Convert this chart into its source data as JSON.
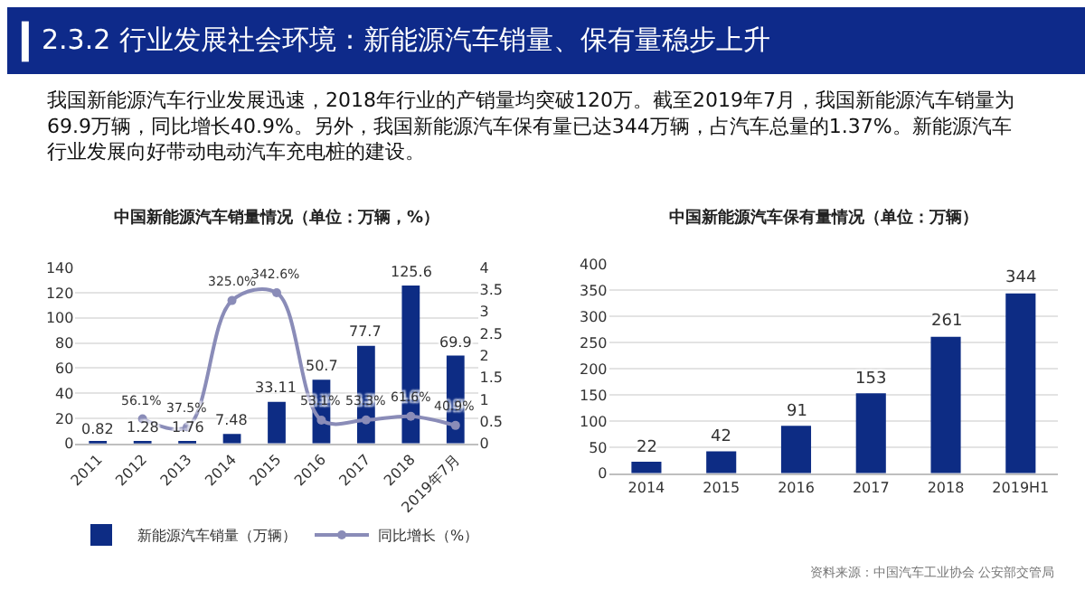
{
  "chart_data": [
    {
      "type": "other",
      "title": "2.3.2 行业发展社会环境：新能源汽车销量、保有量稳步上升",
      "annotations": [
        "我国新能源汽车行业发展迅速，2018年行业的产销量均突破120万。截至2019年7月，我国新能源汽车销量为69.9万辆，同比增长40.9%。另外，我国新能源汽车保有量已达344万辆，占汽车总量的1.37%。新能源汽车行业发展向好带动电动汽车充电桩的建设。"
      ]
    },
    {
      "type": "bar",
      "title": "中国新能源汽车销量情况（单位：万辆，%）",
      "categories": [
        "2011",
        "2012",
        "2013",
        "2014",
        "2015",
        "2016",
        "2017",
        "2018",
        "2019年7月"
      ],
      "series": [
        {
          "name": "新能源汽车销量（万辆）",
          "color": "#0d2c84",
          "values": [
            0.82,
            1.28,
            1.76,
            7.48,
            33.11,
            50.7,
            77.7,
            125.6,
            69.9
          ]
        },
        {
          "name": "同比增长（%）",
          "type": "line",
          "axis": "y2",
          "color": "#8a8cb8",
          "values": [
            null,
            0.561,
            0.375,
            3.25,
            3.426,
            0.531,
            0.533,
            0.616,
            0.409
          ],
          "value_labels": [
            null,
            "56.1%",
            "37.5%",
            "325.0%",
            "342.6%",
            "53.1%",
            "53.3%",
            "61.6%",
            "40.9%"
          ]
        }
      ],
      "ylim": [
        0,
        140
      ],
      "yticks": [
        0,
        20,
        40,
        60,
        80,
        100,
        120,
        140
      ],
      "y2lim": [
        0,
        4
      ],
      "y2ticks": [
        0,
        0.5,
        1,
        1.5,
        2,
        2.5,
        3,
        3.5,
        4
      ],
      "data_labels": true,
      "grid": "y",
      "legend": "bottom",
      "marker": "circle"
    },
    {
      "type": "bar",
      "title": "中国新能源汽车保有量情况（单位：万辆）",
      "categories": [
        "2014",
        "2015",
        "2016",
        "2017",
        "2018",
        "2019H1"
      ],
      "series": [
        {
          "color": "#0d2c84",
          "values": [
            22,
            42,
            91,
            153,
            261,
            344
          ]
        }
      ],
      "ylim": [
        0,
        400
      ],
      "yticks": [
        0,
        50,
        100,
        150,
        200,
        250,
        300,
        350,
        400
      ],
      "data_labels": true,
      "grid": "y",
      "annotations": [
        "资料来源：中国汽车工业协会 公安部交管局"
      ]
    }
  ]
}
